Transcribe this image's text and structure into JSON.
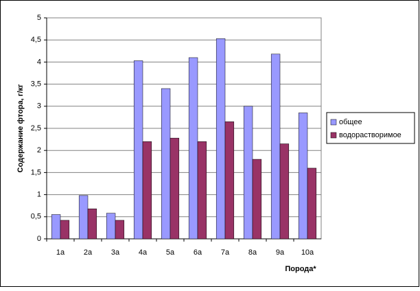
{
  "chart_data": {
    "type": "bar",
    "categories": [
      "1а",
      "2а",
      "3а",
      "4а",
      "5а",
      "6а",
      "7а",
      "8а",
      "9а",
      "10а"
    ],
    "series": [
      {
        "name": "общее",
        "color": "#9999ff",
        "values": [
          0.55,
          0.98,
          0.58,
          4.03,
          3.4,
          4.1,
          4.53,
          3.0,
          4.18,
          2.85
        ]
      },
      {
        "name": "водорастворимое",
        "color": "#993366",
        "values": [
          0.42,
          0.68,
          0.42,
          2.2,
          2.28,
          2.2,
          2.65,
          1.8,
          2.15,
          1.6
        ]
      }
    ],
    "ylim": [
      0,
      5
    ],
    "yticks": [
      0,
      {
        "value": 0.5,
        "label": "0,5"
      },
      1,
      {
        "value": 1.5,
        "label": "1,5"
      },
      2,
      {
        "value": 2.5,
        "label": "2,5"
      },
      3,
      {
        "value": 3.5,
        "label": "3,5"
      },
      4,
      {
        "value": 4.5,
        "label": "4,5"
      },
      5
    ],
    "y_label": "Содержание фтора, г/кг",
    "x_label": "Порода*",
    "grid": true,
    "legend": "right"
  }
}
